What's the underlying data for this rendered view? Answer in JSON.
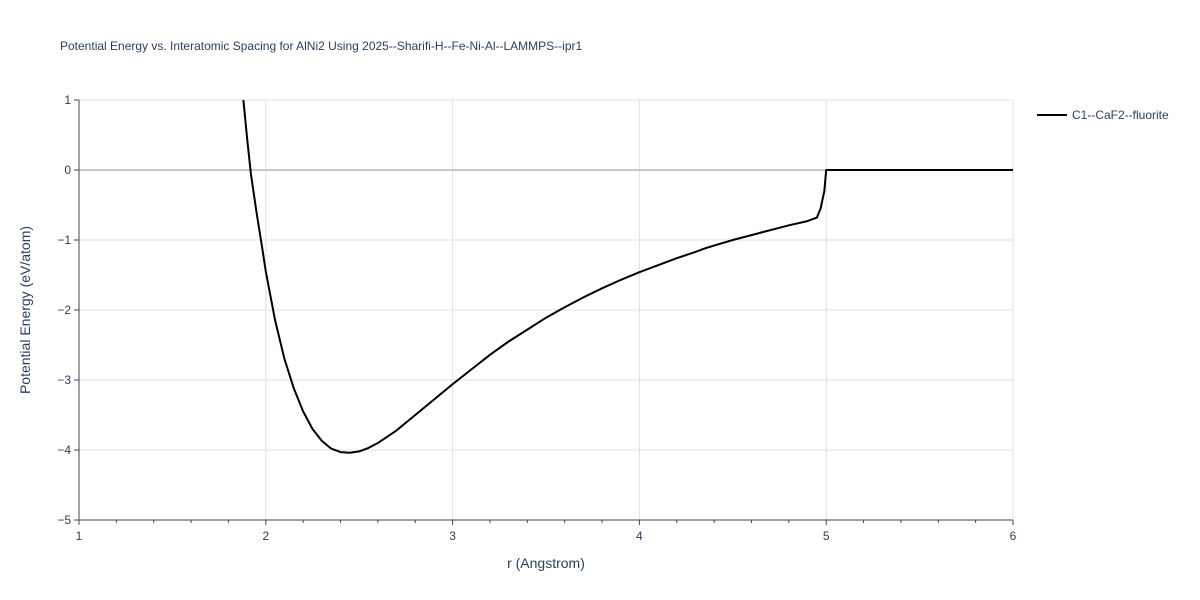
{
  "chart_data": {
    "type": "line",
    "title": "Potential Energy vs. Interatomic Spacing for AlNi2 Using 2025--Sharifi-H--Fe-Ni-Al--LAMMPS--ipr1",
    "xlabel": "r (Angstrom)",
    "ylabel": "Potential Energy (eV/atom)",
    "xlim": [
      1,
      6
    ],
    "ylim": [
      -5,
      1
    ],
    "xticks": [
      1,
      2,
      3,
      4,
      5,
      6
    ],
    "yticks": [
      -5,
      -4,
      -3,
      -2,
      -1,
      0,
      1
    ],
    "xtick_labels": [
      "1",
      "2",
      "3",
      "4",
      "5",
      "6"
    ],
    "ytick_labels": [
      "−5",
      "−4",
      "−3",
      "−2",
      "−1",
      "0",
      "1"
    ],
    "grid": true,
    "legend_position": "top-right",
    "series": [
      {
        "name": "C1--CaF2--fluorite",
        "color": "#000000",
        "x": [
          1.88,
          1.9,
          1.92,
          1.95,
          1.98,
          2.0,
          2.05,
          2.1,
          2.15,
          2.2,
          2.25,
          2.3,
          2.35,
          2.4,
          2.45,
          2.5,
          2.55,
          2.6,
          2.7,
          2.8,
          2.9,
          3.0,
          3.1,
          3.2,
          3.3,
          3.4,
          3.5,
          3.6,
          3.7,
          3.8,
          3.9,
          4.0,
          4.1,
          4.2,
          4.3,
          4.35,
          4.4,
          4.5,
          4.6,
          4.7,
          4.8,
          4.9,
          4.95,
          4.97,
          4.99,
          5.0,
          5.1,
          5.5,
          6.0
        ],
        "y": [
          1.0,
          0.45,
          -0.05,
          -0.6,
          -1.1,
          -1.45,
          -2.15,
          -2.7,
          -3.12,
          -3.45,
          -3.7,
          -3.87,
          -3.98,
          -4.03,
          -4.04,
          -4.02,
          -3.97,
          -3.9,
          -3.72,
          -3.5,
          -3.28,
          -3.06,
          -2.85,
          -2.64,
          -2.45,
          -2.28,
          -2.11,
          -1.96,
          -1.82,
          -1.69,
          -1.57,
          -1.46,
          -1.36,
          -1.26,
          -1.17,
          -1.12,
          -1.08,
          -1.0,
          -0.93,
          -0.86,
          -0.79,
          -0.73,
          -0.68,
          -0.55,
          -0.3,
          0.0,
          0.0,
          0.0,
          0.0
        ]
      }
    ]
  }
}
